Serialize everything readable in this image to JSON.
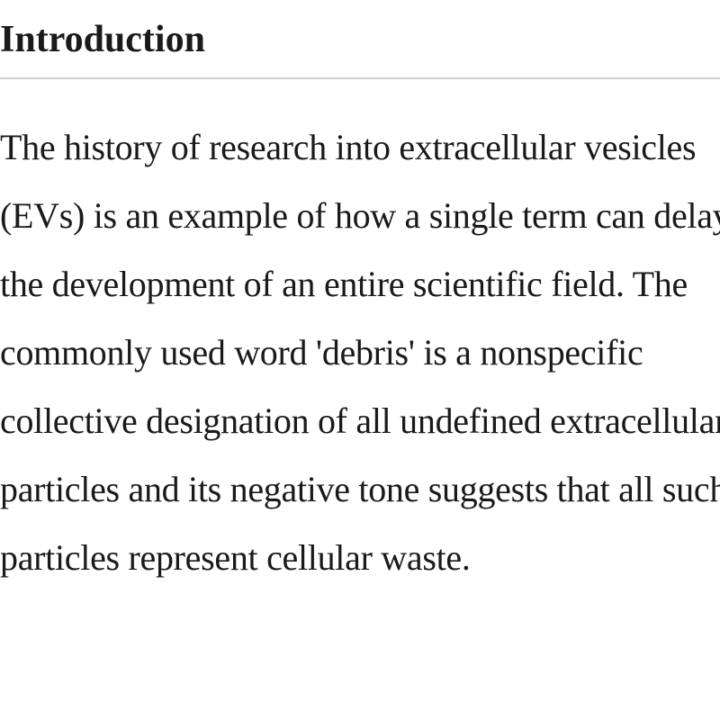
{
  "section": {
    "heading": "Introduction",
    "body": "The history of research into extracellular vesicles (EVs) is an example of how a single term can delay the development of an entire scientific field. The commonly used word 'debris' is a nonspecific collective designation of all undefined extracellular particles and its negative tone suggests that all such particles represent cellular waste."
  },
  "styling": {
    "heading_fontsize": 42,
    "heading_weight": 700,
    "body_fontsize": 40,
    "body_lineheight": 1.9,
    "text_color": "#1a1a1a",
    "divider_color": "#d0d0d0",
    "background_color": "#ffffff",
    "font_family": "Georgia, serif"
  }
}
